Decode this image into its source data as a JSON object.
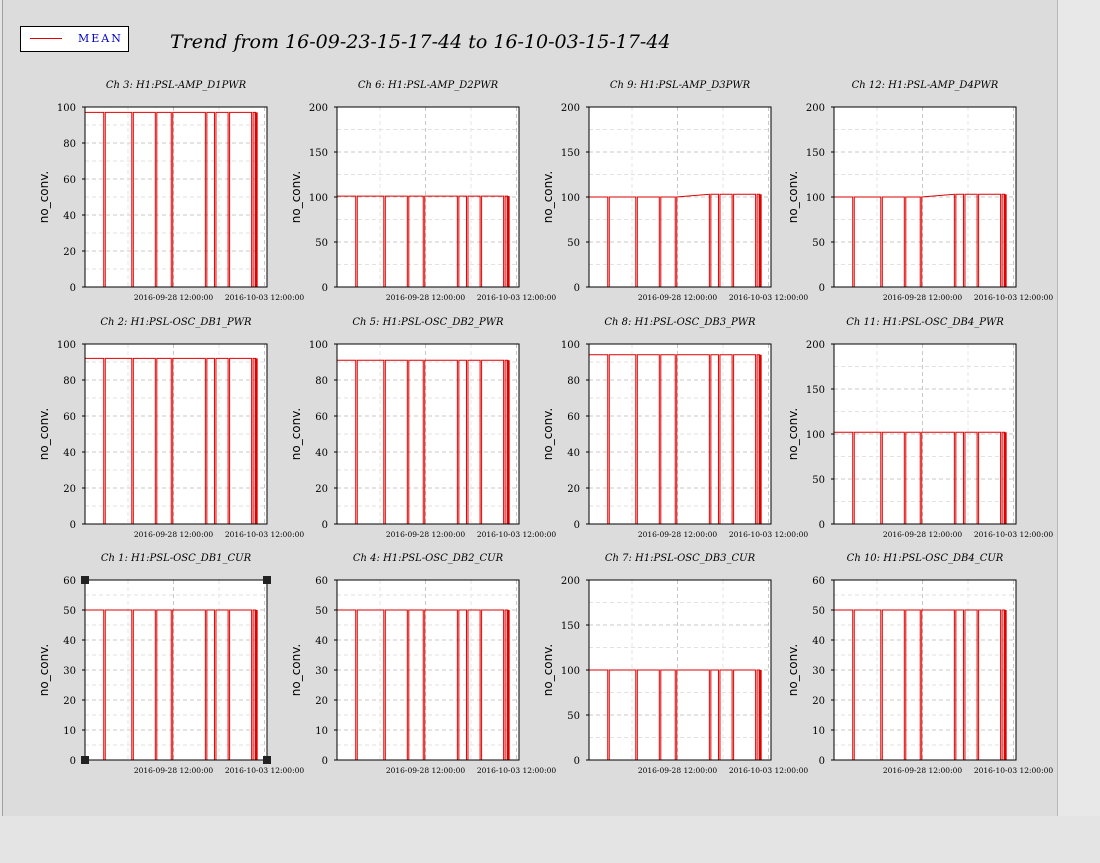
{
  "legend": {
    "label": "MEAN",
    "color": "#e00000"
  },
  "title": "Trend from 16-09-23-15-17-44 to 16-10-03-15-17-44",
  "chart_data": [
    {
      "type": "line",
      "title": "Ch 3: H1:PSL-AMP_D1PWR",
      "ylabel": "no_conv.",
      "ylim": [
        0,
        100
      ],
      "yticks": [
        0,
        20,
        40,
        60,
        80,
        100
      ],
      "xlim": [
        "2016-09-23 15:17:44",
        "2016-10-03 15:17:44"
      ],
      "xticklabels": [
        "2016-09-28 12:00:00",
        "2016-10-03 12:00:00"
      ],
      "grid": true,
      "series": [
        {
          "name": "MEAN",
          "level": 97,
          "level2": 97
        }
      ],
      "drops": [
        "2016-09-24 16:00",
        "2016-09-26 05:00",
        "2016-09-27 12:00",
        "2016-09-28 09:00",
        "2016-09-30 06:00",
        "2016-09-30 18:00",
        "2016-10-01 12:00",
        "2016-10-02 19:00"
      ]
    },
    {
      "type": "line",
      "title": "Ch 6: H1:PSL-AMP_D2PWR",
      "ylabel": "no_conv.",
      "ylim": [
        0,
        200
      ],
      "yticks": [
        0,
        50,
        100,
        150,
        200
      ],
      "xlim": [
        "2016-09-23 15:17:44",
        "2016-10-03 15:17:44"
      ],
      "xticklabels": [
        "2016-09-28 12:00:00",
        "2016-10-03 12:00:00"
      ],
      "grid": true,
      "series": [
        {
          "name": "MEAN",
          "level": 101,
          "level2": 101
        }
      ],
      "drops": [
        "2016-09-24 16:00",
        "2016-09-26 05:00",
        "2016-09-27 12:00",
        "2016-09-28 09:00",
        "2016-09-30 06:00",
        "2016-09-30 18:00",
        "2016-10-01 12:00",
        "2016-10-02 19:00"
      ]
    },
    {
      "type": "line",
      "title": "Ch 9: H1:PSL-AMP_D3PWR",
      "ylabel": "no_conv.",
      "ylim": [
        0,
        200
      ],
      "yticks": [
        0,
        50,
        100,
        150,
        200
      ],
      "xlim": [
        "2016-09-23 15:17:44",
        "2016-10-03 15:17:44"
      ],
      "xticklabels": [
        "2016-09-28 12:00:00",
        "2016-10-03 12:00:00"
      ],
      "grid": true,
      "series": [
        {
          "name": "MEAN",
          "level": 100,
          "level2": 103
        }
      ],
      "drops": [
        "2016-09-24 16:00",
        "2016-09-26 05:00",
        "2016-09-27 12:00",
        "2016-09-28 09:00",
        "2016-09-30 06:00",
        "2016-09-30 18:00",
        "2016-10-01 12:00",
        "2016-10-02 19:00"
      ]
    },
    {
      "type": "line",
      "title": "Ch 12: H1:PSL-AMP_D4PWR",
      "ylabel": "no_conv.",
      "ylim": [
        0,
        200
      ],
      "yticks": [
        0,
        50,
        100,
        150,
        200
      ],
      "xlim": [
        "2016-09-23 15:17:44",
        "2016-10-03 15:17:44"
      ],
      "xticklabels": [
        "2016-09-28 12:00:00",
        "2016-10-03 12:00:00"
      ],
      "grid": true,
      "series": [
        {
          "name": "MEAN",
          "level": 100,
          "level2": 103
        }
      ],
      "drops": [
        "2016-09-24 16:00",
        "2016-09-26 05:00",
        "2016-09-27 12:00",
        "2016-09-28 09:00",
        "2016-09-30 06:00",
        "2016-09-30 18:00",
        "2016-10-01 12:00",
        "2016-10-02 19:00"
      ]
    },
    {
      "type": "line",
      "title": "Ch 2: H1:PSL-OSC_DB1_PWR",
      "ylabel": "no_conv.",
      "ylim": [
        0,
        100
      ],
      "yticks": [
        0,
        20,
        40,
        60,
        80,
        100
      ],
      "xlim": [
        "2016-09-23 15:17:44",
        "2016-10-03 15:17:44"
      ],
      "xticklabels": [
        "2016-09-28 12:00:00",
        "2016-10-03 12:00:00"
      ],
      "grid": true,
      "series": [
        {
          "name": "MEAN",
          "level": 92,
          "level2": 92
        }
      ],
      "drops": [
        "2016-09-24 16:00",
        "2016-09-26 05:00",
        "2016-09-27 12:00",
        "2016-09-28 09:00",
        "2016-09-30 06:00",
        "2016-09-30 18:00",
        "2016-10-01 12:00",
        "2016-10-02 19:00"
      ]
    },
    {
      "type": "line",
      "title": "Ch 5: H1:PSL-OSC_DB2_PWR",
      "ylabel": "no_conv.",
      "ylim": [
        0,
        100
      ],
      "yticks": [
        0,
        20,
        40,
        60,
        80,
        100
      ],
      "xlim": [
        "2016-09-23 15:17:44",
        "2016-10-03 15:17:44"
      ],
      "xticklabels": [
        "2016-09-28 12:00:00",
        "2016-10-03 12:00:00"
      ],
      "grid": true,
      "series": [
        {
          "name": "MEAN",
          "level": 91,
          "level2": 91
        }
      ],
      "drops": [
        "2016-09-24 16:00",
        "2016-09-26 05:00",
        "2016-09-27 12:00",
        "2016-09-28 09:00",
        "2016-09-30 06:00",
        "2016-09-30 18:00",
        "2016-10-01 12:00",
        "2016-10-02 19:00"
      ]
    },
    {
      "type": "line",
      "title": "Ch 8: H1:PSL-OSC_DB3_PWR",
      "ylabel": "no_conv.",
      "ylim": [
        0,
        100
      ],
      "yticks": [
        0,
        20,
        40,
        60,
        80,
        100
      ],
      "xlim": [
        "2016-09-23 15:17:44",
        "2016-10-03 15:17:44"
      ],
      "xticklabels": [
        "2016-09-28 12:00:00",
        "2016-10-03 12:00:00"
      ],
      "grid": true,
      "series": [
        {
          "name": "MEAN",
          "level": 94,
          "level2": 94
        }
      ],
      "drops": [
        "2016-09-24 16:00",
        "2016-09-26 05:00",
        "2016-09-27 12:00",
        "2016-09-28 09:00",
        "2016-09-30 06:00",
        "2016-09-30 18:00",
        "2016-10-01 12:00",
        "2016-10-02 19:00"
      ]
    },
    {
      "type": "line",
      "title": "Ch 11: H1:PSL-OSC_DB4_PWR",
      "ylabel": "no_conv.",
      "ylim": [
        0,
        200
      ],
      "yticks": [
        0,
        50,
        100,
        150,
        200
      ],
      "xlim": [
        "2016-09-23 15:17:44",
        "2016-10-03 15:17:44"
      ],
      "xticklabels": [
        "2016-09-28 12:00:00",
        "2016-10-03 12:00:00"
      ],
      "grid": true,
      "series": [
        {
          "name": "MEAN",
          "level": 102,
          "level2": 102
        }
      ],
      "drops": [
        "2016-09-24 16:00",
        "2016-09-26 05:00",
        "2016-09-27 12:00",
        "2016-09-28 09:00",
        "2016-09-30 06:00",
        "2016-09-30 18:00",
        "2016-10-01 12:00",
        "2016-10-02 19:00"
      ]
    },
    {
      "type": "line",
      "title": "Ch 1: H1:PSL-OSC_DB1_CUR",
      "ylabel": "no_conv.",
      "ylim": [
        0,
        60
      ],
      "yticks": [
        0,
        10,
        20,
        30,
        40,
        50,
        60
      ],
      "xlim": [
        "2016-09-23 15:17:44",
        "2016-10-03 15:17:44"
      ],
      "xticklabels": [
        "2016-09-28 12:00:00",
        "2016-10-03 12:00:00"
      ],
      "grid": true,
      "series": [
        {
          "name": "MEAN",
          "level": 50,
          "level2": 50
        }
      ],
      "drops": [
        "2016-09-24 16:00",
        "2016-09-26 05:00",
        "2016-09-27 12:00",
        "2016-09-28 09:00",
        "2016-09-30 06:00",
        "2016-09-30 18:00",
        "2016-10-01 12:00",
        "2016-10-02 19:00"
      ],
      "selected": true
    },
    {
      "type": "line",
      "title": "Ch 4: H1:PSL-OSC_DB2_CUR",
      "ylabel": "no_conv.",
      "ylim": [
        0,
        60
      ],
      "yticks": [
        0,
        10,
        20,
        30,
        40,
        50,
        60
      ],
      "xlim": [
        "2016-09-23 15:17:44",
        "2016-10-03 15:17:44"
      ],
      "xticklabels": [
        "2016-09-28 12:00:00",
        "2016-10-03 12:00:00"
      ],
      "grid": true,
      "series": [
        {
          "name": "MEAN",
          "level": 50,
          "level2": 50
        }
      ],
      "drops": [
        "2016-09-24 16:00",
        "2016-09-26 05:00",
        "2016-09-27 12:00",
        "2016-09-28 09:00",
        "2016-09-30 06:00",
        "2016-09-30 18:00",
        "2016-10-01 12:00",
        "2016-10-02 19:00"
      ]
    },
    {
      "type": "line",
      "title": "Ch 7: H1:PSL-OSC_DB3_CUR",
      "ylabel": "no_conv.",
      "ylim": [
        0,
        200
      ],
      "yticks": [
        0,
        50,
        100,
        150,
        200
      ],
      "xlim": [
        "2016-09-23 15:17:44",
        "2016-10-03 15:17:44"
      ],
      "xticklabels": [
        "2016-09-28 12:00:00",
        "2016-10-03 12:00:00"
      ],
      "grid": true,
      "series": [
        {
          "name": "MEAN",
          "level": 100,
          "level2": 100
        }
      ],
      "drops": [
        "2016-09-24 16:00",
        "2016-09-26 05:00",
        "2016-09-27 12:00",
        "2016-09-28 09:00",
        "2016-09-30 06:00",
        "2016-09-30 18:00",
        "2016-10-01 12:00",
        "2016-10-02 19:00"
      ]
    },
    {
      "type": "line",
      "title": "Ch 10: H1:PSL-OSC_DB4_CUR",
      "ylabel": "no_conv.",
      "ylim": [
        0,
        60
      ],
      "yticks": [
        0,
        10,
        20,
        30,
        40,
        50,
        60
      ],
      "xlim": [
        "2016-09-23 15:17:44",
        "2016-10-03 15:17:44"
      ],
      "xticklabels": [
        "2016-09-28 12:00:00",
        "2016-10-03 12:00:00"
      ],
      "grid": true,
      "series": [
        {
          "name": "MEAN",
          "level": 50,
          "level2": 50
        }
      ],
      "drops": [
        "2016-09-24 16:00",
        "2016-09-26 05:00",
        "2016-09-27 12:00",
        "2016-09-28 09:00",
        "2016-09-30 06:00",
        "2016-09-30 18:00",
        "2016-10-01 12:00",
        "2016-10-02 19:00"
      ]
    }
  ]
}
